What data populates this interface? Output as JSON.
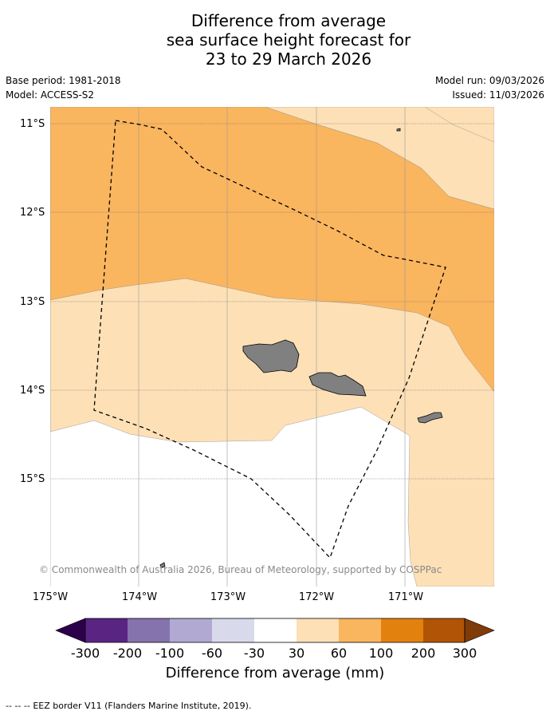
{
  "title": {
    "line1": "Difference from average",
    "line2": "sea surface height forecast for",
    "line3": "23 to 29 March 2026"
  },
  "meta": {
    "base_period": "Base period: 1981-2018",
    "model": "Model: ACCESS-S2",
    "model_run": "Model run: 09/03/2026",
    "issued": "Issued: 11/03/2026"
  },
  "map": {
    "lat_labels": [
      "11°S",
      "12°S",
      "13°S",
      "14°S",
      "15°S"
    ],
    "lon_labels": [
      "175°W",
      "174°W",
      "173°W",
      "172°W",
      "171°W"
    ],
    "copyright": "© Commonwealth of Australia 2026, Bureau of Meteorology, supported by COSPPac",
    "colors": {
      "land": "#808080",
      "band_30_60": "#fde0b6",
      "band_60_100": "#fab55f",
      "neutral": "#ffffff"
    }
  },
  "colorbar": {
    "title": "Difference from average (mm)",
    "ticks": [
      "-300",
      "-200",
      "-100",
      "-60",
      "-30",
      "30",
      "60",
      "100",
      "200",
      "300"
    ],
    "colors": [
      "#5a2482",
      "#8573ad",
      "#b2a9d3",
      "#d9d9ec",
      "#ffffff",
      "#fde0b6",
      "#fab55f",
      "#e3810f",
      "#b15406"
    ],
    "under_color": "#2d004b",
    "over_color": "#7f3b08"
  },
  "legend": {
    "line_marker": "-- -- --",
    "text": "EEZ border V11 (Flanders Marine Institute, 2019)."
  }
}
